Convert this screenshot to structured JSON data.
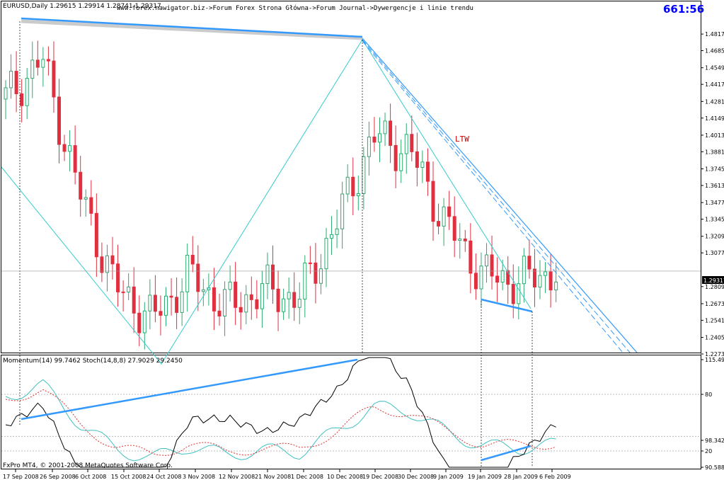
{
  "header": {
    "symbol_info": "EURUSD,Daily  1.29615 1.29914 1.28741 1.29317",
    "site_title": "www.forex.nawigator.biz->Forum Forex Strona Główna->Forum Journal->Dywergencje i linie trendu",
    "clock": "661:56",
    "clock_color": "#0000ff"
  },
  "annotations": {
    "ltw_label": "LTW",
    "ltw_color": "#c00000",
    "trendline_color": "#3399ff",
    "zigzag_color": "#33cccc"
  },
  "price_axis": {
    "ticks": [
      "1.48170",
      "1.46850",
      "1.45490",
      "1.44170",
      "1.42810",
      "1.41490",
      "1.40130",
      "1.38810",
      "1.37450",
      "1.36130",
      "1.34770",
      "1.33450",
      "1.32090",
      "1.30770",
      "1.28090",
      "1.26730",
      "1.25410",
      "1.24050",
      "1.22730"
    ],
    "current_price": "1.29317"
  },
  "indicator": {
    "label": "Momentum(14) 99.7462  Stoch(14,8,8) 27.9029 29.2450",
    "ticks": [
      "115.4963",
      "80",
      "98.3425",
      "20",
      "90.5884"
    ]
  },
  "footer": {
    "copyright": "FxPro MT4, © 2001-2008 MetaQuotes Software Corp."
  },
  "time_axis": {
    "labels": [
      "17 Sep 2008",
      "26 Sep 2008",
      "6 Oct 2008",
      "15 Oct 2008",
      "24 Oct 2008",
      "3 Nov 2008",
      "12 Nov 2008",
      "21 Nov 2008",
      "1 Dec 2008",
      "10 Dec 2008",
      "19 Dec 2008",
      "30 Dec 2008",
      "9 Jan 2009",
      "19 Jan 2009",
      "28 Jan 2009",
      "6 Feb 2009"
    ]
  },
  "colors": {
    "bull": "#2eaa6e",
    "bear": "#e03040",
    "momentum_line": "#000000",
    "stoch_main": "#40c0c0",
    "stoch_signal": "#e03030"
  },
  "chart_data": {
    "type": "candlestick",
    "title": "EURUSD,Daily",
    "ylim": [
      1.2273,
      1.4902
    ],
    "x": [
      "17 Sep 2008",
      "26 Sep 2008",
      "6 Oct 2008",
      "15 Oct 2008",
      "24 Oct 2008",
      "3 Nov 2008",
      "12 Nov 2008",
      "21 Nov 2008",
      "1 Dec 2008",
      "10 Dec 2008",
      "19 Dec 2008",
      "30 Dec 2008",
      "9 Jan 2009",
      "19 Jan 2009",
      "28 Jan 2009",
      "6 Feb 2009"
    ],
    "close": [
      1.43,
      1.462,
      1.356,
      1.28,
      1.255,
      1.29,
      1.265,
      1.278,
      1.272,
      1.33,
      1.4,
      1.39,
      1.33,
      1.29,
      1.285,
      1.2932
    ],
    "zigzag_turns": [
      {
        "x": "17 Sep 2008",
        "y": 1.38
      },
      {
        "x": "24 Oct 2008",
        "y": 1.233
      },
      {
        "x": "19 Dec 2008",
        "y": 1.47
      },
      {
        "x": "28 Jan 2009",
        "y": 1.28
      }
    ],
    "indicator_panel": {
      "momentum": {
        "name": "Momentum(14)",
        "last": 99.7462
      },
      "stochastic": {
        "name": "Stoch(14,8,8)",
        "main": 27.9029,
        "signal": 29.245
      },
      "levels": [
        80,
        20
      ]
    }
  }
}
